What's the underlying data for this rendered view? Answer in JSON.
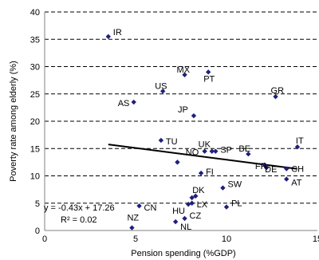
{
  "chart_data": {
    "type": "scatter",
    "xlabel": "Pension spending (%GDP)",
    "ylabel": "Poverty rate among elderly (%)",
    "xlim": [
      0,
      15
    ],
    "ylim": [
      0,
      40
    ],
    "xticks": [
      0,
      5,
      10,
      15
    ],
    "yticks": [
      0,
      5,
      10,
      15,
      20,
      25,
      30,
      35,
      40
    ],
    "grid": "horizontal dashed",
    "marker_color": "#1f1f7a",
    "trendline_color": "#000000",
    "points": [
      {
        "label": "IR",
        "x": 3.5,
        "y": 35.5
      },
      {
        "label": "MX",
        "x": 7.7,
        "y": 28.5
      },
      {
        "label": "PT",
        "x": 9.0,
        "y": 29.0
      },
      {
        "label": "US",
        "x": 6.5,
        "y": 25.5
      },
      {
        "label": "GR",
        "x": 12.7,
        "y": 24.5
      },
      {
        "label": "AS",
        "x": 4.9,
        "y": 23.5
      },
      {
        "label": "JP",
        "x": 8.2,
        "y": 21.0
      },
      {
        "label": "TU",
        "x": 6.4,
        "y": 16.5
      },
      {
        "label": "IT",
        "x": 13.9,
        "y": 15.3
      },
      {
        "label": "UK",
        "x": 8.8,
        "y": 14.5
      },
      {
        "label": "NO",
        "x": 9.2,
        "y": 14.5
      },
      {
        "label": "SP",
        "x": 9.4,
        "y": 14.5
      },
      {
        "label": "BE",
        "x": 11.2,
        "y": 14.0
      },
      {
        "label": "",
        "x": 7.3,
        "y": 12.5
      },
      {
        "label": "FR",
        "x": 12.1,
        "y": 12.0
      },
      {
        "label": "DE",
        "x": 12.2,
        "y": 11.5
      },
      {
        "label": "CH",
        "x": 13.3,
        "y": 11.3
      },
      {
        "label": "FI",
        "x": 8.6,
        "y": 10.5
      },
      {
        "label": "AT",
        "x": 13.3,
        "y": 9.4
      },
      {
        "label": "SW",
        "x": 9.8,
        "y": 7.8
      },
      {
        "label": "DK",
        "x": 8.3,
        "y": 6.3
      },
      {
        "label": "",
        "x": 8.1,
        "y": 6.0
      },
      {
        "label": "LX",
        "x": 8.1,
        "y": 5.0
      },
      {
        "label": "HU",
        "x": 7.9,
        "y": 4.8
      },
      {
        "label": "PL",
        "x": 10.0,
        "y": 4.3
      },
      {
        "label": "CN",
        "x": 5.2,
        "y": 4.5
      },
      {
        "label": "CZ",
        "x": 7.7,
        "y": 2.2
      },
      {
        "label": "NL",
        "x": 7.2,
        "y": 1.6
      },
      {
        "label": "NZ",
        "x": 4.8,
        "y": 0.5
      }
    ],
    "trendline": {
      "x_start": 3.5,
      "x_end": 13.9,
      "slope": -0.43,
      "intercept": 17.26
    },
    "annotations": {
      "equation": "y = -0.43x + 17.26",
      "r_squared": "R² = 0.02"
    }
  }
}
